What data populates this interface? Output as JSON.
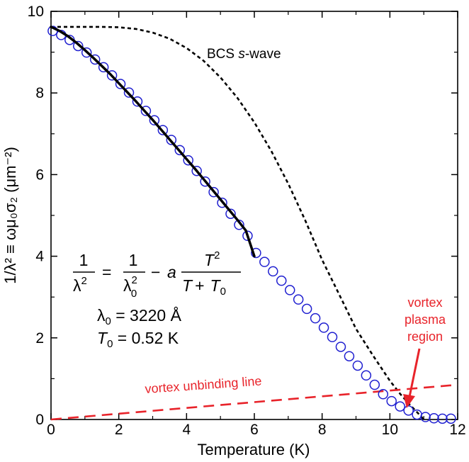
{
  "chart_data": {
    "type": "scatter",
    "xlabel": "Temperature (K)",
    "ylabel": "1/λ² ≡ ωμ₀σ₂ (μm⁻²)",
    "xlim": [
      0,
      12
    ],
    "ylim": [
      0,
      10
    ],
    "x_ticks": [
      "0",
      "2",
      "4",
      "6",
      "8",
      "10",
      "12"
    ],
    "y_ticks": [
      "0",
      "2",
      "4",
      "6",
      "8",
      "10"
    ],
    "grid": false,
    "colors": {
      "data_points": "#1f1fd0",
      "fit": "#000000",
      "bcs": "#000000",
      "vortex_line": "#e8232a",
      "annotation_red": "#e8232a"
    },
    "series": [
      {
        "type": "scatter",
        "marker": "open-circle",
        "x": [
          0.05,
          0.3,
          0.55,
          0.8,
          1.05,
          1.3,
          1.55,
          1.8,
          2.05,
          2.3,
          2.55,
          2.8,
          3.05,
          3.3,
          3.55,
          3.8,
          4.05,
          4.3,
          4.55,
          4.8,
          5.05,
          5.3,
          5.55,
          5.8,
          6.05,
          6.3,
          6.55,
          6.8,
          7.05,
          7.3,
          7.55,
          7.8,
          8.05,
          8.3,
          8.55,
          8.8,
          9.05,
          9.3,
          9.55,
          9.8,
          10.05,
          10.3,
          10.55,
          10.8,
          11.05,
          11.3,
          11.55,
          11.8
        ],
        "y": [
          9.52,
          9.42,
          9.3,
          9.15,
          8.99,
          8.82,
          8.63,
          8.43,
          8.22,
          8.01,
          7.79,
          7.56,
          7.33,
          7.09,
          6.85,
          6.6,
          6.35,
          6.09,
          5.83,
          5.57,
          5.31,
          5.04,
          4.77,
          4.5,
          4.08,
          3.86,
          3.63,
          3.4,
          3.17,
          2.94,
          2.71,
          2.48,
          2.25,
          2.02,
          1.78,
          1.55,
          1.32,
          1.08,
          0.85,
          0.62,
          0.45,
          0.32,
          0.22,
          0.12,
          0.06,
          0.03,
          0.02,
          0.02
        ]
      },
      {
        "type": "line",
        "style": "solid",
        "x": [
          0,
          0.25,
          0.5,
          0.75,
          1,
          1.25,
          1.5,
          1.75,
          2,
          2.25,
          2.5,
          2.75,
          3,
          3.25,
          3.5,
          3.75,
          4,
          4.25,
          4.5,
          4.75,
          5,
          5.25,
          5.5,
          5.75,
          6
        ],
        "y": [
          9.62,
          9.52,
          9.39,
          9.23,
          9.05,
          8.86,
          8.66,
          8.46,
          8.24,
          8.02,
          7.8,
          7.57,
          7.34,
          7.1,
          6.86,
          6.62,
          6.38,
          6.14,
          5.89,
          5.64,
          5.39,
          5.14,
          4.89,
          4.63,
          4.0
        ]
      },
      {
        "name": "BCS s-wave",
        "type": "line",
        "style": "dotted",
        "x": [
          0,
          0.5,
          1,
          1.5,
          2,
          2.5,
          3,
          3.5,
          4,
          4.5,
          5,
          5.5,
          6,
          6.5,
          7,
          7.5,
          8,
          8.5,
          9,
          9.5,
          10,
          10.3,
          10.6,
          10.8,
          11.0
        ],
        "y": [
          9.62,
          9.62,
          9.62,
          9.62,
          9.61,
          9.57,
          9.48,
          9.33,
          9.1,
          8.79,
          8.38,
          7.88,
          7.28,
          6.58,
          5.78,
          4.88,
          3.91,
          3.07,
          2.22,
          1.57,
          0.95,
          0.63,
          0.35,
          0.18,
          0.0
        ]
      },
      {
        "name": "vortex unbinding line",
        "type": "line",
        "style": "dashed",
        "x": [
          0,
          12
        ],
        "y": [
          0.0,
          0.85
        ]
      }
    ],
    "annotations": [
      {
        "text_parts": [
          "BCS ",
          "s",
          "-wave"
        ],
        "italic_index": 1
      },
      {
        "text": "vortex unbinding line"
      },
      {
        "lines": [
          "vortex",
          "plasma",
          "region"
        ]
      }
    ],
    "formula": {
      "numerator_left": "1",
      "lambda": "λ",
      "power": "2",
      "equals": "=",
      "numerator_mid": "1",
      "lambda0_sub": "0",
      "minus": "−",
      "coeff": "a",
      "T": "T",
      "plus": "+",
      "T0_sub": "0"
    },
    "params": [
      {
        "symbol": "λ",
        "sub": "0",
        "rest": " = 3220 Å"
      },
      {
        "symbol": "T",
        "sub": "0",
        "rest": " = 0.52 K"
      }
    ]
  }
}
